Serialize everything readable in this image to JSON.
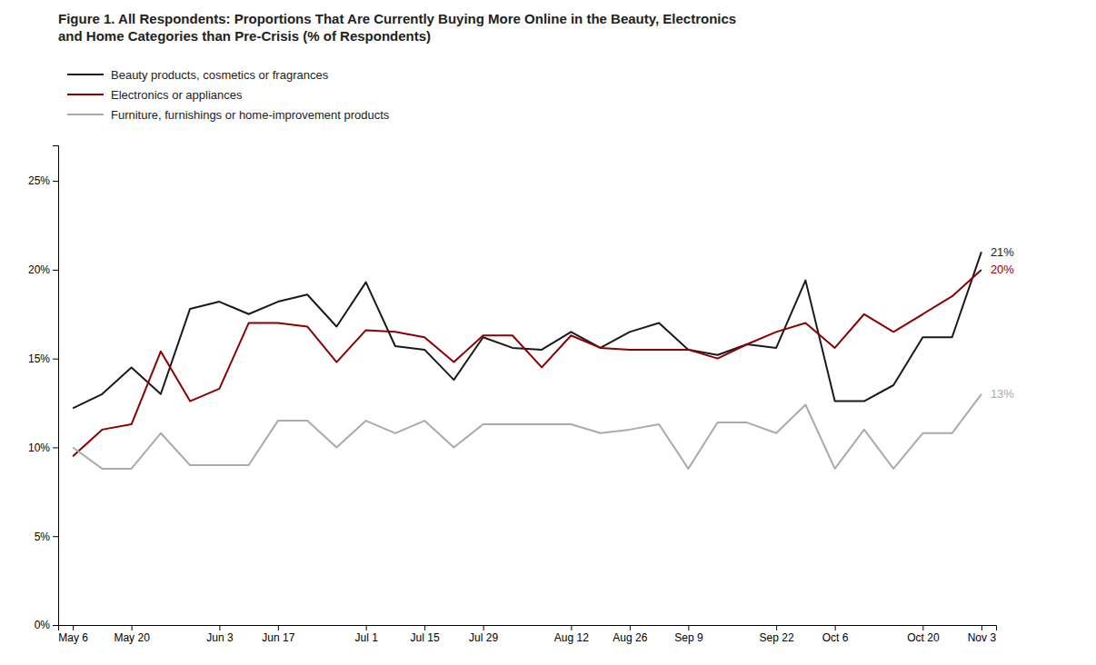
{
  "chart_data": {
    "type": "line",
    "title": "Figure 1. All Respondents: Proportions That Are Currently Buying More Online in the Beauty, Electronics\nand Home Categories than Pre-Crisis (% of Respondents)",
    "categories": [
      "May 6",
      null,
      "May 20",
      null,
      null,
      "Jun 3",
      null,
      "Jun 17",
      null,
      null,
      "Jul 1",
      null,
      "Jul 15",
      null,
      "Jul 29",
      null,
      null,
      "Aug 12",
      null,
      "Aug 26",
      null,
      "Sep 9",
      null,
      null,
      "Sep 22",
      null,
      "Oct 6",
      null,
      null,
      "Oct 20",
      null,
      "Nov 3"
    ],
    "series": [
      {
        "name": "Beauty products, cosmetics or fragrances",
        "color": "#1a1a1a",
        "values": [
          0.122,
          0.13,
          0.145,
          0.13,
          0.178,
          0.182,
          0.175,
          0.182,
          0.186,
          0.168,
          0.193,
          0.157,
          0.155,
          0.138,
          0.162,
          0.156,
          0.155,
          0.165,
          0.156,
          0.165,
          0.17,
          0.155,
          0.152,
          0.158,
          0.156,
          0.194,
          0.126,
          0.126,
          0.135,
          0.162,
          0.162,
          0.21
        ],
        "value_labels": [
          null,
          null,
          null,
          null,
          null,
          null,
          null,
          null,
          null,
          null,
          null,
          null,
          null,
          null,
          null,
          null,
          null,
          null,
          null,
          null,
          null,
          null,
          null,
          null,
          null,
          null,
          null,
          null,
          null,
          null,
          null,
          "21%"
        ]
      },
      {
        "name": "Electronics or appliances",
        "color": "#8b0000",
        "values": [
          0.095,
          0.11,
          0.113,
          0.154,
          0.126,
          0.133,
          0.17,
          0.17,
          0.168,
          0.148,
          0.166,
          0.165,
          0.162,
          0.148,
          0.163,
          0.163,
          0.145,
          0.163,
          0.156,
          0.155,
          0.155,
          0.155,
          0.15,
          0.158,
          0.165,
          0.17,
          0.156,
          0.175,
          0.165,
          0.175,
          0.185,
          0.2
        ],
        "value_labels": [
          null,
          null,
          null,
          null,
          null,
          null,
          null,
          null,
          null,
          null,
          null,
          null,
          null,
          null,
          null,
          null,
          null,
          null,
          null,
          null,
          null,
          null,
          null,
          null,
          null,
          null,
          null,
          null,
          null,
          null,
          null,
          "20%"
        ]
      },
      {
        "name": "Furniture, furnishings or home-improvement products",
        "color": "#aaaaaa",
        "values": [
          0.1,
          0.088,
          0.088,
          0.108,
          0.09,
          0.09,
          0.09,
          0.115,
          0.115,
          0.1,
          0.115,
          0.108,
          0.115,
          0.1,
          0.113,
          0.113,
          0.113,
          0.113,
          0.108,
          0.11,
          0.113,
          0.088,
          0.114,
          0.114,
          0.108,
          0.124,
          0.088,
          0.11,
          0.088,
          0.108,
          0.108,
          0.13
        ],
        "value_labels": [
          null,
          null,
          null,
          null,
          null,
          null,
          null,
          null,
          null,
          null,
          null,
          null,
          null,
          null,
          null,
          null,
          null,
          null,
          null,
          null,
          null,
          null,
          null,
          null,
          null,
          null,
          null,
          null,
          null,
          null,
          null,
          "13%"
        ]
      }
    ],
    "ylim": [
      0,
      0.27
    ],
    "yticks": [
      {
        "value": 0.0,
        "label": "0%"
      },
      {
        "value": 0.05,
        "label": "5%"
      },
      {
        "value": 0.1,
        "label": "10%"
      },
      {
        "value": 0.15,
        "label": "15%"
      },
      {
        "value": 0.2,
        "label": "20%"
      },
      {
        "value": 0.25,
        "label": "25%"
      }
    ],
    "grid": false,
    "legend": "top"
  }
}
